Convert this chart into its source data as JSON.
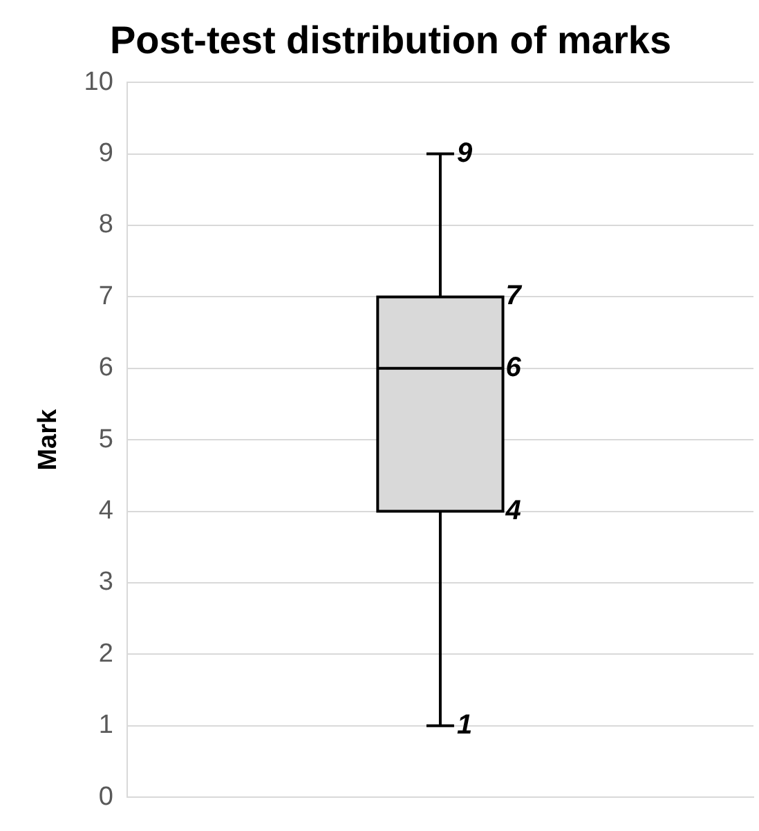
{
  "chart_data": {
    "type": "box",
    "title": "Post-test distribution of marks",
    "ylabel": "Mark",
    "categories": [
      null
    ],
    "boxes": [
      {
        "low": 1,
        "q1": 4,
        "median": 6,
        "q3": 7,
        "high": 9
      }
    ],
    "color": "#d9d9d9",
    "ylim": [
      0,
      10
    ],
    "yticks": [
      0,
      1,
      2,
      3,
      4,
      5,
      6,
      7,
      8,
      9,
      10
    ],
    "grid": "y",
    "data_labels": true,
    "annotations": [
      "9",
      "7",
      "6",
      "4",
      "1"
    ]
  }
}
